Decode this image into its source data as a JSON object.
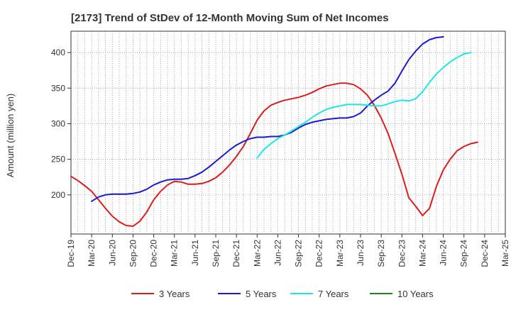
{
  "chart_data": {
    "type": "line",
    "title": "[2173]  Trend of StDev of 12-Month Moving Sum of Net Incomes",
    "xlabel": "",
    "ylabel": "Amount (million yen)",
    "ylim": [
      145,
      430
    ],
    "yticks": [
      200,
      250,
      300,
      350,
      400
    ],
    "grid": true,
    "legend_position": "bottom",
    "x_ticks": [
      "Dec-19",
      "Mar-20",
      "Jun-20",
      "Sep-20",
      "Dec-20",
      "Mar-21",
      "Jun-21",
      "Sep-21",
      "Dec-21",
      "Mar-22",
      "Jun-22",
      "Sep-22",
      "Dec-22",
      "Mar-23",
      "Jun-23",
      "Sep-23",
      "Dec-23",
      "Mar-24",
      "Jun-24",
      "Sep-24",
      "Dec-24",
      "Mar-25"
    ],
    "series": [
      {
        "name": "3 Years",
        "color": "#dd1c1c",
        "start": "Dec-19",
        "values": [
          226,
          220,
          213,
          205,
          193,
          181,
          170,
          162,
          157,
          156,
          163,
          176,
          193,
          205,
          214,
          219,
          218,
          215,
          215,
          216,
          219,
          224,
          232,
          242,
          254,
          268,
          286,
          305,
          318,
          326,
          330,
          333,
          335,
          337,
          340,
          344,
          349,
          353,
          355,
          357,
          357,
          355,
          349,
          340,
          326,
          308,
          286,
          258,
          229,
          196,
          184,
          171,
          181,
          212,
          235,
          250,
          262,
          268,
          272,
          274
        ]
      },
      {
        "name": "5 Years",
        "color": "#1a1ad0",
        "start": "Mar-20",
        "values": [
          191,
          197,
          200,
          201,
          201,
          201,
          202,
          204,
          208,
          214,
          218,
          221,
          222,
          222,
          223,
          227,
          232,
          239,
          247,
          255,
          263,
          270,
          275,
          279,
          281,
          281,
          282,
          282,
          284,
          288,
          294,
          299,
          302,
          304,
          306,
          307,
          308,
          308,
          310,
          315,
          325,
          333,
          340,
          346,
          357,
          374,
          390,
          402,
          412,
          418,
          421,
          422
        ]
      },
      {
        "name": "7 Years",
        "color": "#1ce8e8",
        "start": "Mar-22",
        "values": [
          252,
          264,
          272,
          279,
          284,
          290,
          296,
          302,
          309,
          315,
          320,
          323,
          325,
          327,
          327,
          327,
          326,
          325,
          325,
          328,
          331,
          333,
          332,
          335,
          345,
          358,
          370,
          379,
          387,
          393,
          398,
          400
        ]
      },
      {
        "name": "10 Years",
        "color": "#1a8a1a",
        "start": "Mar-25",
        "values": []
      }
    ]
  }
}
